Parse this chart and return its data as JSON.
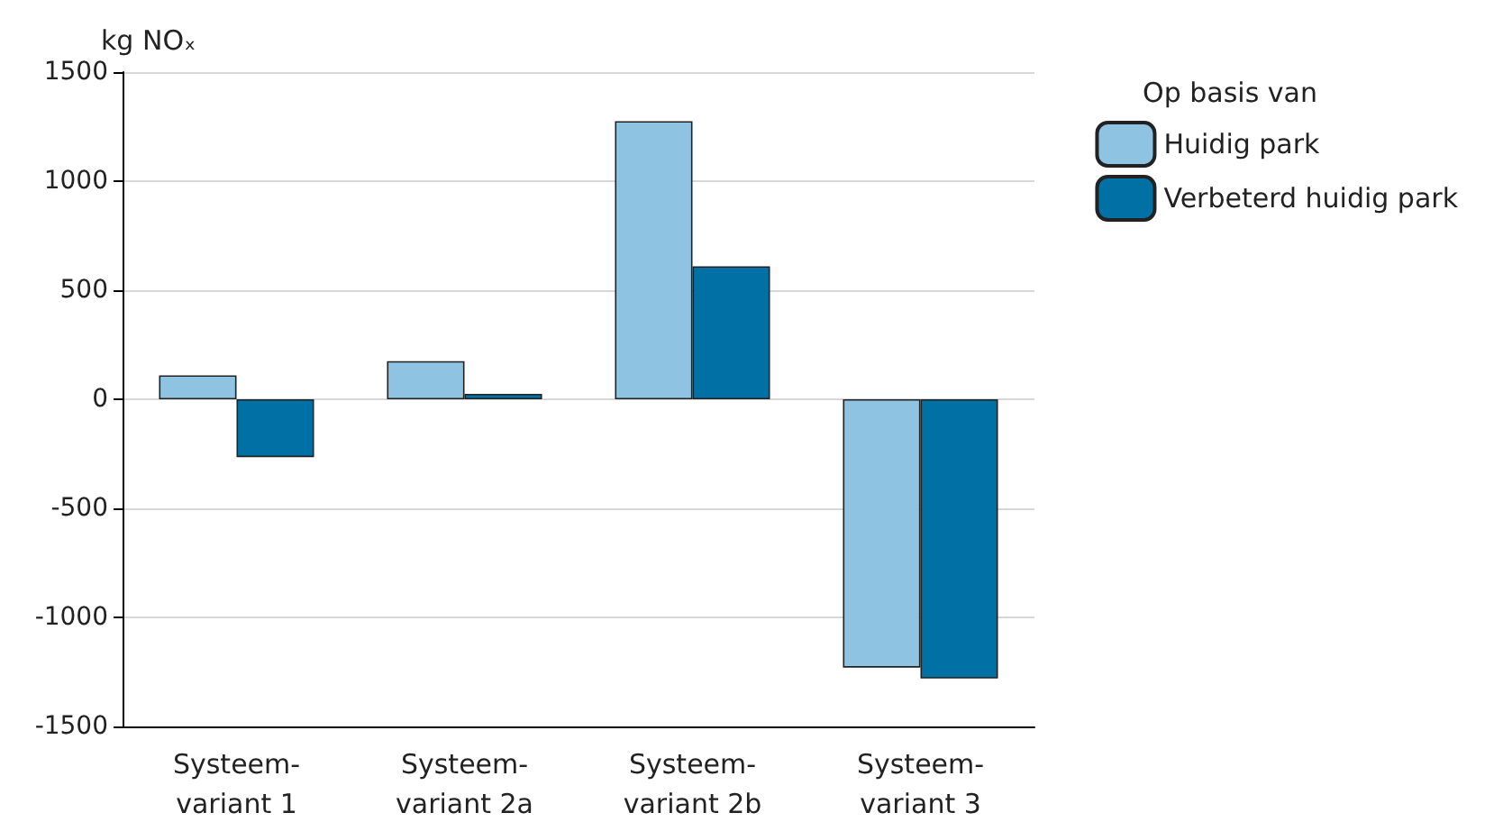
{
  "chart_data": {
    "type": "bar",
    "ylabel": "kg NOₓ",
    "legend_title": "Op basis van",
    "categories": [
      "Systeem-\nvariant 1",
      "Systeem-\nvariant 2a",
      "Systeem-\nvariant 2b",
      "Systeem-\nvariant 3"
    ],
    "series": [
      {
        "name": "Huidig park",
        "color": "#8ec4e2",
        "values": [
          110,
          175,
          1275,
          -1230
        ]
      },
      {
        "name": "Verbeterd huidig park",
        "color": "#0070a5",
        "values": [
          -265,
          25,
          610,
          -1280
        ]
      }
    ],
    "ylim": [
      -1500,
      1500
    ],
    "yticks": [
      -1500,
      -1000,
      -500,
      0,
      500,
      1000,
      1500
    ],
    "grid": "y",
    "legend": "top right"
  }
}
